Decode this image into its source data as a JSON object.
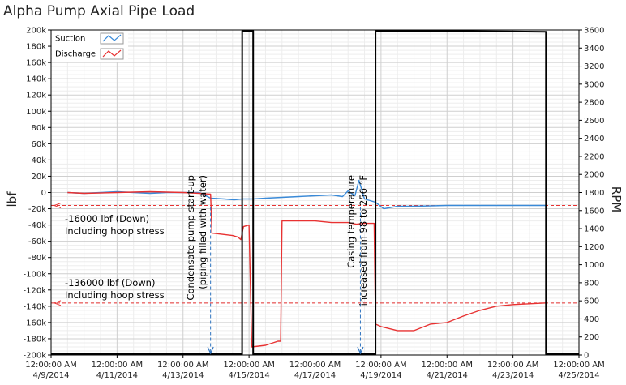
{
  "chart_data": {
    "type": "line",
    "title": "Alpha Pump Axial Pipe Load",
    "ylabel": "lbf",
    "y2label": "RPM",
    "ylim": [
      -200000,
      200000
    ],
    "y2lim": [
      0,
      3600
    ],
    "xlim": [
      "4/9/2014 00:00",
      "4/25/2014 00:00"
    ],
    "grid": true,
    "legend_position": "top-left",
    "y_ticks": [
      "200k",
      "180k",
      "160k",
      "140k",
      "120k",
      "100k",
      "80k",
      "60k",
      "40k",
      "20k",
      "0",
      "-20k",
      "-40k",
      "-60k",
      "-80k",
      "-100k",
      "-120k",
      "-140k",
      "-160k",
      "-180k",
      "-200k"
    ],
    "y2_ticks": [
      "3600",
      "3400",
      "3200",
      "3000",
      "2800",
      "2600",
      "2400",
      "2200",
      "2000",
      "1800",
      "1600",
      "1400",
      "1200",
      "1000",
      "800",
      "600",
      "400",
      "200",
      "0"
    ],
    "x_ticks": [
      {
        "time": "12:00:00 AM",
        "date": "4/9/2014"
      },
      {
        "time": "12:00:00 AM",
        "date": "4/11/2014"
      },
      {
        "time": "12:00:00 AM",
        "date": "4/13/2014"
      },
      {
        "time": "12:00:00 AM",
        "date": "4/15/2014"
      },
      {
        "time": "12:00:00 AM",
        "date": "4/17/2014"
      },
      {
        "time": "12:00:00 AM",
        "date": "4/19/2014"
      },
      {
        "time": "12:00:00 AM",
        "date": "4/21/2014"
      },
      {
        "time": "12:00:00 AM",
        "date": "4/23/2014"
      },
      {
        "time": "12:00:00 AM",
        "date": "4/25/2014"
      }
    ],
    "series": [
      {
        "name": "Suction",
        "axis": "left",
        "color": "#3a8ad8",
        "x": [
          "4/9 12:00",
          "4/10 00:00",
          "4/10 12:00",
          "4/11 00:00",
          "4/11 12:00",
          "4/12 00:00",
          "4/12 12:00",
          "4/13 00:00",
          "4/13 12:00",
          "4/13 20:00",
          "4/14 06:00",
          "4/14 13:00",
          "4/14 19:00",
          "4/15 03:00",
          "4/15 12:00",
          "4/16 00:00",
          "4/16 12:00",
          "4/17 00:00",
          "4/17 12:00",
          "4/17 20:00",
          "4/18 00:00",
          "4/18 05:00",
          "4/18 08:00",
          "4/18 12:00",
          "4/18 20:00",
          "4/19 02:00",
          "4/19 12:00",
          "4/20 00:00",
          "4/21 00:00",
          "4/22 00:00",
          "4/23 00:00",
          "4/24 00:00"
        ],
        "values": [
          0,
          -1000,
          0,
          1000,
          0,
          -1000,
          0,
          0,
          0,
          -7000,
          -8000,
          -9000,
          -8000,
          -8000,
          -7000,
          -6000,
          -5000,
          -4000,
          -3000,
          -5000,
          2000,
          -4000,
          15000,
          -8000,
          -12000,
          -20000,
          -17000,
          -17000,
          -16000,
          -16000,
          -16000,
          -16000
        ]
      },
      {
        "name": "Discharge",
        "axis": "left",
        "color": "#e83232",
        "x": [
          "4/9 12:00",
          "4/10 00:00",
          "4/11 00:00",
          "4/12 00:00",
          "4/13 00:00",
          "4/13 12:00",
          "4/13 20:00",
          "4/13 21:00",
          "4/14 12:00",
          "4/14 16:00",
          "4/14 18:00",
          "4/14 20:00",
          "4/15 00:00",
          "4/15 02:00",
          "4/15 12:00",
          "4/15 21:00",
          "4/15 23:00",
          "4/16 00:00",
          "4/16 12:00",
          "4/17 00:00",
          "4/17 12:00",
          "4/18 00:00",
          "4/18 06:00",
          "4/18 12:00",
          "4/18 19:00",
          "4/18 20:00",
          "4/19 00:00",
          "4/19 12:00",
          "4/20 00:00",
          "4/20 12:00",
          "4/21 00:00",
          "4/21 12:00",
          "4/22 00:00",
          "4/22 12:00",
          "4/23 00:00",
          "4/24 00:00"
        ],
        "values": [
          0,
          -1000,
          0,
          1000,
          0,
          -1000,
          -2000,
          -50000,
          -53000,
          -55000,
          -58000,
          -42000,
          -40000,
          -190000,
          -188000,
          -183000,
          -183000,
          -35000,
          -35000,
          -35000,
          -37000,
          -37000,
          -39000,
          -38000,
          -38000,
          -162000,
          -165000,
          -170000,
          -170000,
          -162000,
          -160000,
          -152000,
          -145000,
          -140000,
          -138000,
          -136000
        ]
      },
      {
        "name": "RPM",
        "axis": "right",
        "color": "#000000",
        "x": [
          "4/9 00:00",
          "4/14 19:00",
          "4/14 19:01",
          "4/15 03:00",
          "4/15 03:01",
          "4/18 20:00",
          "4/18 20:01",
          "4/20 00:00",
          "4/24 00:00",
          "4/24 00:01",
          "4/25 00:00"
        ],
        "values": [
          0,
          0,
          3600,
          3600,
          0,
          0,
          3600,
          3600,
          3580,
          0,
          0
        ]
      }
    ],
    "reference_lines": [
      {
        "value": -16000,
        "style": "dashed",
        "color": "#e83232"
      },
      {
        "value": -136000,
        "style": "dashed",
        "color": "#e83232"
      }
    ],
    "annotations": [
      {
        "lines": [
          "Condensate pump start-up",
          "(piping filled with water)"
        ],
        "x": "4/13 20:00",
        "arrow": true
      },
      {
        "lines": [
          "Casing temperature",
          "increased from 98 to 256 °F"
        ],
        "x": "4/18 09:00",
        "arrow": true
      },
      {
        "lines": [
          "-16000  lbf (Down)",
          "Including hoop stress"
        ]
      },
      {
        "lines": [
          "-136000  lbf (Down)",
          "Including hoop stress"
        ]
      }
    ]
  }
}
